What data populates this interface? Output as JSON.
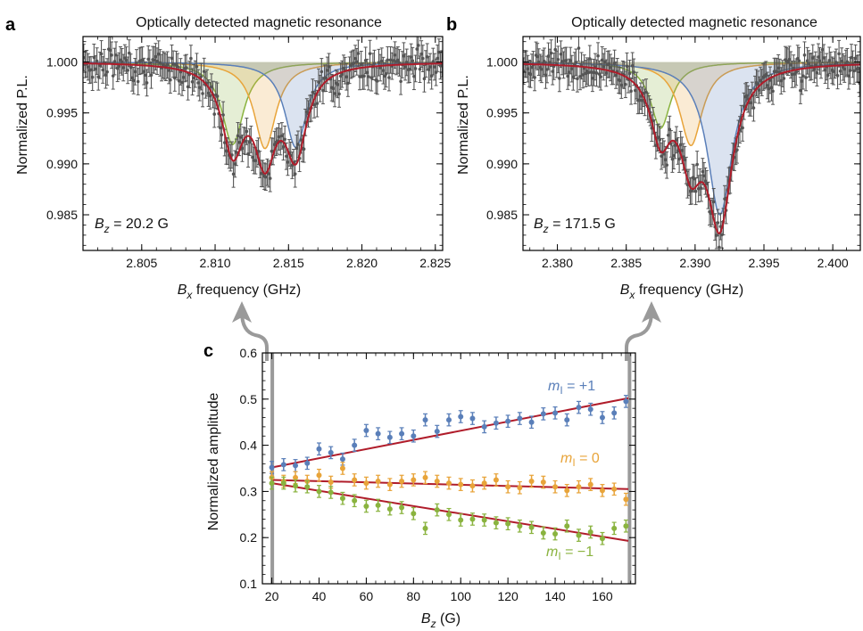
{
  "panels": {
    "a": "a",
    "b": "b",
    "c": "c"
  },
  "colors": {
    "data": "#555555",
    "fit": "#b01c2a",
    "blue": "#5a7fb9",
    "orange": "#e8a43a",
    "green": "#8ab33f"
  },
  "chart_data": [
    {
      "id": "a",
      "type": "scatter",
      "title": "Optically detected magnetic resonance",
      "xlabel": {
        "var": "B",
        "sub": "x",
        "rest": " frequency (GHz)"
      },
      "ylabel": "Normalized P.L.",
      "annotation": {
        "var": "B",
        "sub": "z",
        "rest": " = 20.2 G"
      },
      "xlim": [
        2.801,
        2.8255
      ],
      "ylim": [
        0.9815,
        1.0025
      ],
      "xticks": [
        "2.805",
        "2.810",
        "2.815",
        "2.820",
        "2.825"
      ],
      "yticks": [
        "0.985",
        "0.990",
        "0.995",
        "1.000"
      ],
      "peaks": [
        {
          "name": "m_I = -1",
          "center": 2.8112,
          "depth": 0.0081,
          "width": 0.0009
        },
        {
          "name": "m_I = 0",
          "center": 2.8134,
          "depth": 0.0085,
          "width": 0.0009
        },
        {
          "name": "m_I = +1",
          "center": 2.8155,
          "depth": 0.0084,
          "width": 0.0009
        }
      ],
      "noise": 0.0011,
      "errorbar": 0.0013
    },
    {
      "id": "b",
      "type": "scatter",
      "title": "Optically detected magnetic resonance",
      "xlabel": {
        "var": "B",
        "sub": "x",
        "rest": " frequency (GHz)"
      },
      "ylabel": "Normalized P.L.",
      "annotation": {
        "var": "B",
        "sub": "z",
        "rest": " = 171.5 G"
      },
      "xlim": [
        2.3775,
        2.402
      ],
      "ylim": [
        0.9815,
        1.0025
      ],
      "xticks": [
        "2.380",
        "2.385",
        "2.390",
        "2.395",
        "2.400"
      ],
      "yticks": [
        "0.985",
        "0.990",
        "0.995",
        "1.000"
      ],
      "peaks": [
        {
          "name": "m_I = -1",
          "center": 2.3875,
          "depth": 0.0065,
          "width": 0.0009
        },
        {
          "name": "m_I = 0",
          "center": 2.3897,
          "depth": 0.0082,
          "width": 0.001
        },
        {
          "name": "m_I = +1",
          "center": 2.3918,
          "depth": 0.015,
          "width": 0.0011
        }
      ],
      "noise": 0.0011,
      "errorbar": 0.0013
    },
    {
      "id": "c",
      "type": "scatter",
      "xlabel": {
        "var": "B",
        "sub": "z",
        "rest": " (G)"
      },
      "ylabel": "Normalized amplitude",
      "xlim": [
        16,
        174
      ],
      "ylim": [
        0.1,
        0.6
      ],
      "xticks": [
        "20",
        "40",
        "60",
        "80",
        "100",
        "120",
        "140",
        "160"
      ],
      "yticks": [
        "0.1",
        "0.2",
        "0.3",
        "0.4",
        "0.5",
        "0.6"
      ],
      "markers": [
        20.2,
        171.5
      ],
      "x": [
        20,
        25,
        30,
        35,
        40,
        45,
        50,
        55,
        60,
        65,
        70,
        75,
        80,
        85,
        90,
        95,
        100,
        105,
        110,
        115,
        120,
        125,
        130,
        135,
        140,
        145,
        150,
        155,
        160,
        165,
        170
      ],
      "series": [
        {
          "label": {
            "var": "m",
            "sub": "I",
            "rest": " = +1"
          },
          "color": "#5a7fb9",
          "values": [
            0.352,
            0.358,
            0.356,
            0.361,
            0.392,
            0.384,
            0.37,
            0.4,
            0.432,
            0.425,
            0.417,
            0.425,
            0.42,
            0.455,
            0.43,
            0.455,
            0.462,
            0.458,
            0.44,
            0.448,
            0.452,
            0.458,
            0.45,
            0.468,
            0.47,
            0.455,
            0.482,
            0.478,
            0.46,
            0.47,
            0.495
          ],
          "fit": [
            0.352,
            0.502
          ]
        },
        {
          "label": {
            "var": "m",
            "sub": "I",
            "rest": " = 0"
          },
          "color": "#e8a43a",
          "values": [
            0.33,
            0.322,
            0.33,
            0.322,
            0.335,
            0.32,
            0.35,
            0.325,
            0.318,
            0.322,
            0.315,
            0.322,
            0.325,
            0.33,
            0.322,
            0.318,
            0.315,
            0.312,
            0.318,
            0.325,
            0.31,
            0.308,
            0.322,
            0.32,
            0.31,
            0.302,
            0.31,
            0.315,
            0.302,
            0.305,
            0.283
          ],
          "fit": [
            0.325,
            0.305
          ]
        },
        {
          "label": {
            "var": "m",
            "sub": "I",
            "rest": " = −1"
          },
          "color": "#8ab33f",
          "values": [
            0.318,
            0.318,
            0.312,
            0.31,
            0.3,
            0.298,
            0.285,
            0.28,
            0.268,
            0.27,
            0.262,
            0.265,
            0.252,
            0.22,
            0.26,
            0.25,
            0.238,
            0.24,
            0.238,
            0.232,
            0.23,
            0.225,
            0.222,
            0.21,
            0.208,
            0.225,
            0.205,
            0.212,
            0.198,
            0.22,
            0.225
          ],
          "fit": [
            0.318,
            0.193
          ]
        }
      ],
      "errorbar": 0.013
    }
  ]
}
